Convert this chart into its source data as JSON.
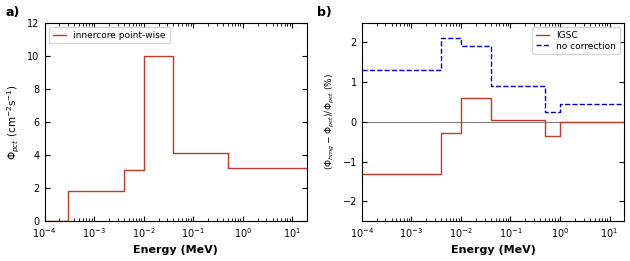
{
  "panel_a": {
    "label": "a)",
    "legend_label": "innercore point-wise",
    "line_color": "#c0392b",
    "xlabel": "Energy (MeV)",
    "xlim": [
      0.0001,
      20
    ],
    "ylim": [
      0,
      12
    ],
    "yticks": [
      0,
      2,
      4,
      6,
      8,
      10,
      12
    ],
    "group_boundaries": [
      0.0001,
      0.0003,
      0.004,
      0.01,
      0.04,
      0.5,
      1.0,
      20.0
    ],
    "group_values": [
      0.03,
      1.85,
      3.1,
      10.0,
      4.15,
      3.2,
      3.2
    ]
  },
  "panel_b": {
    "label": "b)",
    "xlabel": "Energy (MeV)",
    "xlim": [
      0.0001,
      20
    ],
    "ylim": [
      -2.5,
      2.5
    ],
    "yticks": [
      -2,
      -1,
      0,
      1,
      2
    ],
    "series": [
      {
        "label": "IGSC",
        "color": "#c0392b",
        "linestyle": "solid",
        "group_boundaries": [
          0.0001,
          0.0003,
          0.004,
          0.01,
          0.04,
          0.5,
          1.0,
          20.0
        ],
        "group_values": [
          -1.3,
          -1.3,
          -0.28,
          0.6,
          0.05,
          -0.35,
          0.0
        ]
      },
      {
        "label": "no correction",
        "color": "#0000cc",
        "linestyle": "dashed",
        "group_boundaries": [
          0.0001,
          0.0003,
          0.004,
          0.01,
          0.04,
          0.5,
          1.0,
          20.0
        ],
        "group_values": [
          1.3,
          1.3,
          2.1,
          1.9,
          0.9,
          0.25,
          0.45
        ]
      }
    ]
  },
  "figure_bg": "#ffffff",
  "axes_bg": "#ffffff"
}
